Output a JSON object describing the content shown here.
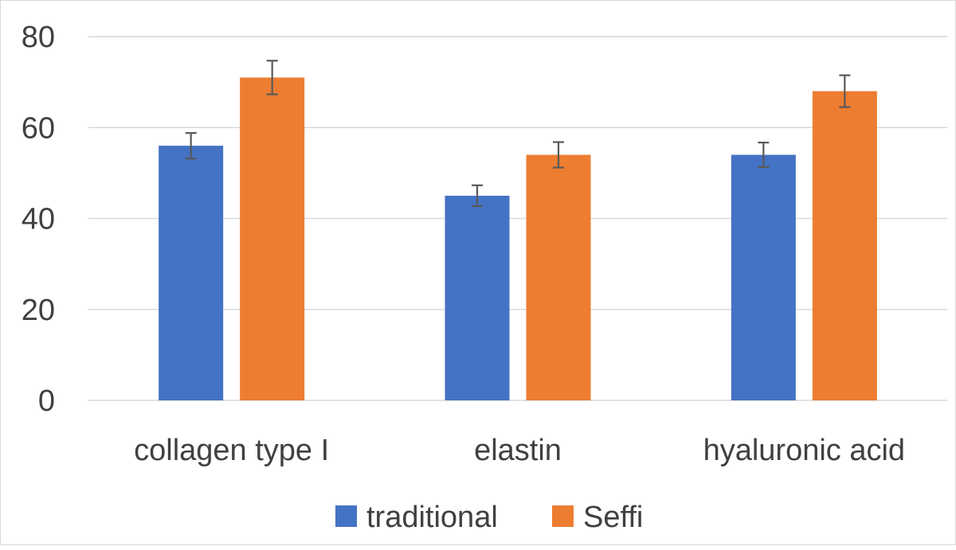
{
  "chart_data": {
    "type": "bar",
    "title": "",
    "xlabel": "",
    "ylabel": "",
    "categories": [
      "collagen type I",
      "elastin",
      "hyaluronic acid"
    ],
    "series": [
      {
        "name": "traditional",
        "color": "#4472c4",
        "values": [
          56,
          45,
          54
        ],
        "errors": [
          2.8,
          2.3,
          2.7
        ]
      },
      {
        "name": "Seffi",
        "color": "#ed7d31",
        "values": [
          71,
          54,
          68
        ],
        "errors": [
          3.7,
          2.8,
          3.5
        ]
      }
    ],
    "ylim": [
      0,
      80
    ],
    "yticks": [
      "0",
      "20",
      "40",
      "60",
      "80"
    ],
    "grid": true,
    "legend_position": "bottom",
    "error_bars": true
  }
}
